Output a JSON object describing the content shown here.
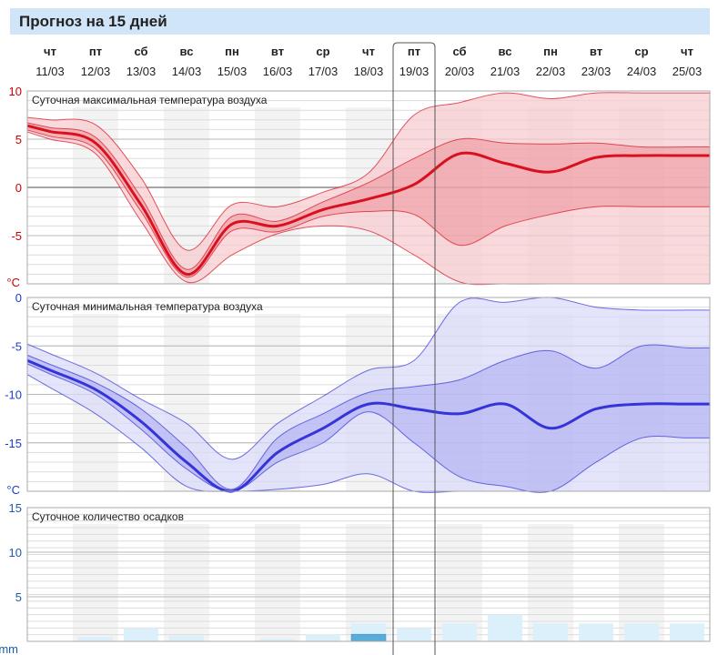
{
  "page_title": "Прогноз на 15 дней",
  "days": [
    {
      "dow": "чт",
      "date": "11/03"
    },
    {
      "dow": "пт",
      "date": "12/03"
    },
    {
      "dow": "сб",
      "date": "13/03"
    },
    {
      "dow": "вс",
      "date": "14/03"
    },
    {
      "dow": "пн",
      "date": "15/03"
    },
    {
      "dow": "вт",
      "date": "16/03"
    },
    {
      "dow": "ср",
      "date": "17/03"
    },
    {
      "dow": "чт",
      "date": "18/03"
    },
    {
      "dow": "пт",
      "date": "19/03"
    },
    {
      "dow": "сб",
      "date": "20/03"
    },
    {
      "dow": "вс",
      "date": "21/03"
    },
    {
      "dow": "пн",
      "date": "22/03"
    },
    {
      "dow": "вт",
      "date": "23/03"
    },
    {
      "dow": "ср",
      "date": "24/03"
    },
    {
      "dow": "чт",
      "date": "25/03"
    }
  ],
  "highlighted_day_index": 8,
  "colors": {
    "title_bg": "#d0e6f8",
    "max_line": "#d9101e",
    "max_band_inner": "#e8828c",
    "max_band_outer": "#f6c9cd",
    "min_line": "#3434d8",
    "min_band_inner": "#9c9cef",
    "min_band_outer": "#d9d9f8",
    "precip_light": "#dcf0fb",
    "precip_dark": "#5aacd8",
    "max_axis": "#cc0000",
    "min_axis": "#1c3cc8",
    "precip_axis": "#1c5cac"
  },
  "chart_data": [
    {
      "type": "area",
      "title": "Суточная максимальная температура воздуха",
      "ylabel": "°C",
      "ylim": [
        -10,
        10
      ],
      "yticks": [
        "10",
        "5",
        "0",
        "-5"
      ],
      "unit_label": "°C",
      "categories": [
        "11/03",
        "12/03",
        "13/03",
        "14/03",
        "15/03",
        "16/03",
        "17/03",
        "18/03",
        "19/03",
        "20/03",
        "21/03",
        "22/03",
        "23/03",
        "24/03",
        "25/03"
      ],
      "series": [
        {
          "name": "outer_high",
          "values": [
            7.0,
            6.5,
            1.0,
            -6.5,
            -1.8,
            -2.0,
            -0.5,
            1.5,
            7.5,
            8.8,
            9.8,
            9.2,
            9.8,
            9.8,
            9.8
          ]
        },
        {
          "name": "inner_high",
          "values": [
            6.2,
            5.2,
            -1.0,
            -8.5,
            -3.0,
            -3.5,
            -1.5,
            0.5,
            3.0,
            5.0,
            4.6,
            4.5,
            4.6,
            4.2,
            4.2
          ]
        },
        {
          "name": "median",
          "values": [
            5.8,
            4.6,
            -1.8,
            -9.0,
            -3.8,
            -4.0,
            -2.3,
            -1.2,
            0.3,
            3.5,
            2.5,
            1.6,
            3.1,
            3.3,
            3.3
          ]
        },
        {
          "name": "inner_low",
          "values": [
            5.3,
            4.0,
            -2.5,
            -9.3,
            -4.5,
            -4.6,
            -3.0,
            -2.5,
            -2.8,
            -6.0,
            -4.0,
            -2.8,
            -2.0,
            -2.0,
            -2.0
          ]
        },
        {
          "name": "outer_low",
          "values": [
            5.0,
            3.5,
            -3.5,
            -9.8,
            -7.0,
            -4.8,
            -4.0,
            -4.5,
            -7.0,
            -9.8,
            -10,
            -10,
            -10,
            -10,
            -10
          ]
        }
      ]
    },
    {
      "type": "area",
      "title": "Суточная минимальная температура воздуха",
      "ylabel": "°C",
      "ylim": [
        -20,
        0
      ],
      "yticks": [
        "0",
        "-5",
        "-10",
        "-15"
      ],
      "unit_label": "°C",
      "categories": [
        "11/03",
        "12/03",
        "13/03",
        "14/03",
        "15/03",
        "16/03",
        "17/03",
        "18/03",
        "19/03",
        "20/03",
        "21/03",
        "22/03",
        "23/03",
        "24/03",
        "25/03"
      ],
      "series": [
        {
          "name": "outer_high",
          "values": [
            -5.8,
            -7.8,
            -10.5,
            -13.0,
            -16.7,
            -13.0,
            -10.2,
            -7.5,
            -6.5,
            -0.5,
            -0.5,
            0.0,
            -1.0,
            -1.3,
            -1.3
          ]
        },
        {
          "name": "inner_high",
          "values": [
            -6.9,
            -8.8,
            -11.5,
            -15.5,
            -19.8,
            -14.5,
            -12.0,
            -9.8,
            -9.2,
            -8.5,
            -6.5,
            -5.5,
            -7.3,
            -5.0,
            -5.2
          ]
        },
        {
          "name": "median",
          "values": [
            -7.5,
            -9.5,
            -12.8,
            -17.0,
            -20.0,
            -16.0,
            -13.5,
            -11.0,
            -11.5,
            -12.0,
            -11.0,
            -13.5,
            -11.5,
            -11.0,
            -11.0
          ]
        },
        {
          "name": "inner_low",
          "values": [
            -7.9,
            -10.0,
            -13.6,
            -17.7,
            -20.0,
            -17.0,
            -15.0,
            -11.8,
            -15.0,
            -18.5,
            -19.5,
            -20.0,
            -17.0,
            -14.5,
            -14.5
          ]
        },
        {
          "name": "outer_low",
          "values": [
            -9.3,
            -12.0,
            -15.5,
            -19.5,
            -20.0,
            -19.8,
            -19.3,
            -18.2,
            -20.0,
            -20.0,
            -20.0,
            -20.0,
            -20.0,
            -20.0,
            -20.0
          ]
        }
      ]
    },
    {
      "type": "bar",
      "title": "Суточное количество осадков",
      "ylabel": "mm",
      "ylim": [
        0,
        15
      ],
      "yticks": [
        "15",
        "10",
        "5"
      ],
      "unit_label": "mm",
      "categories": [
        "11/03",
        "12/03",
        "13/03",
        "14/03",
        "15/03",
        "16/03",
        "17/03",
        "18/03",
        "19/03",
        "20/03",
        "21/03",
        "22/03",
        "23/03",
        "24/03",
        "25/03"
      ],
      "series": [
        {
          "name": "high_estimate",
          "values": [
            0,
            0.5,
            1.5,
            0.6,
            0,
            0.3,
            0.8,
            2.0,
            1.5,
            2.0,
            3.0,
            2.0,
            2.0,
            2.0,
            2.0
          ]
        },
        {
          "name": "likely",
          "values": [
            0,
            0,
            0,
            0,
            0,
            0,
            0,
            0.8,
            0,
            0,
            0,
            0,
            0,
            0,
            0
          ]
        }
      ]
    }
  ]
}
